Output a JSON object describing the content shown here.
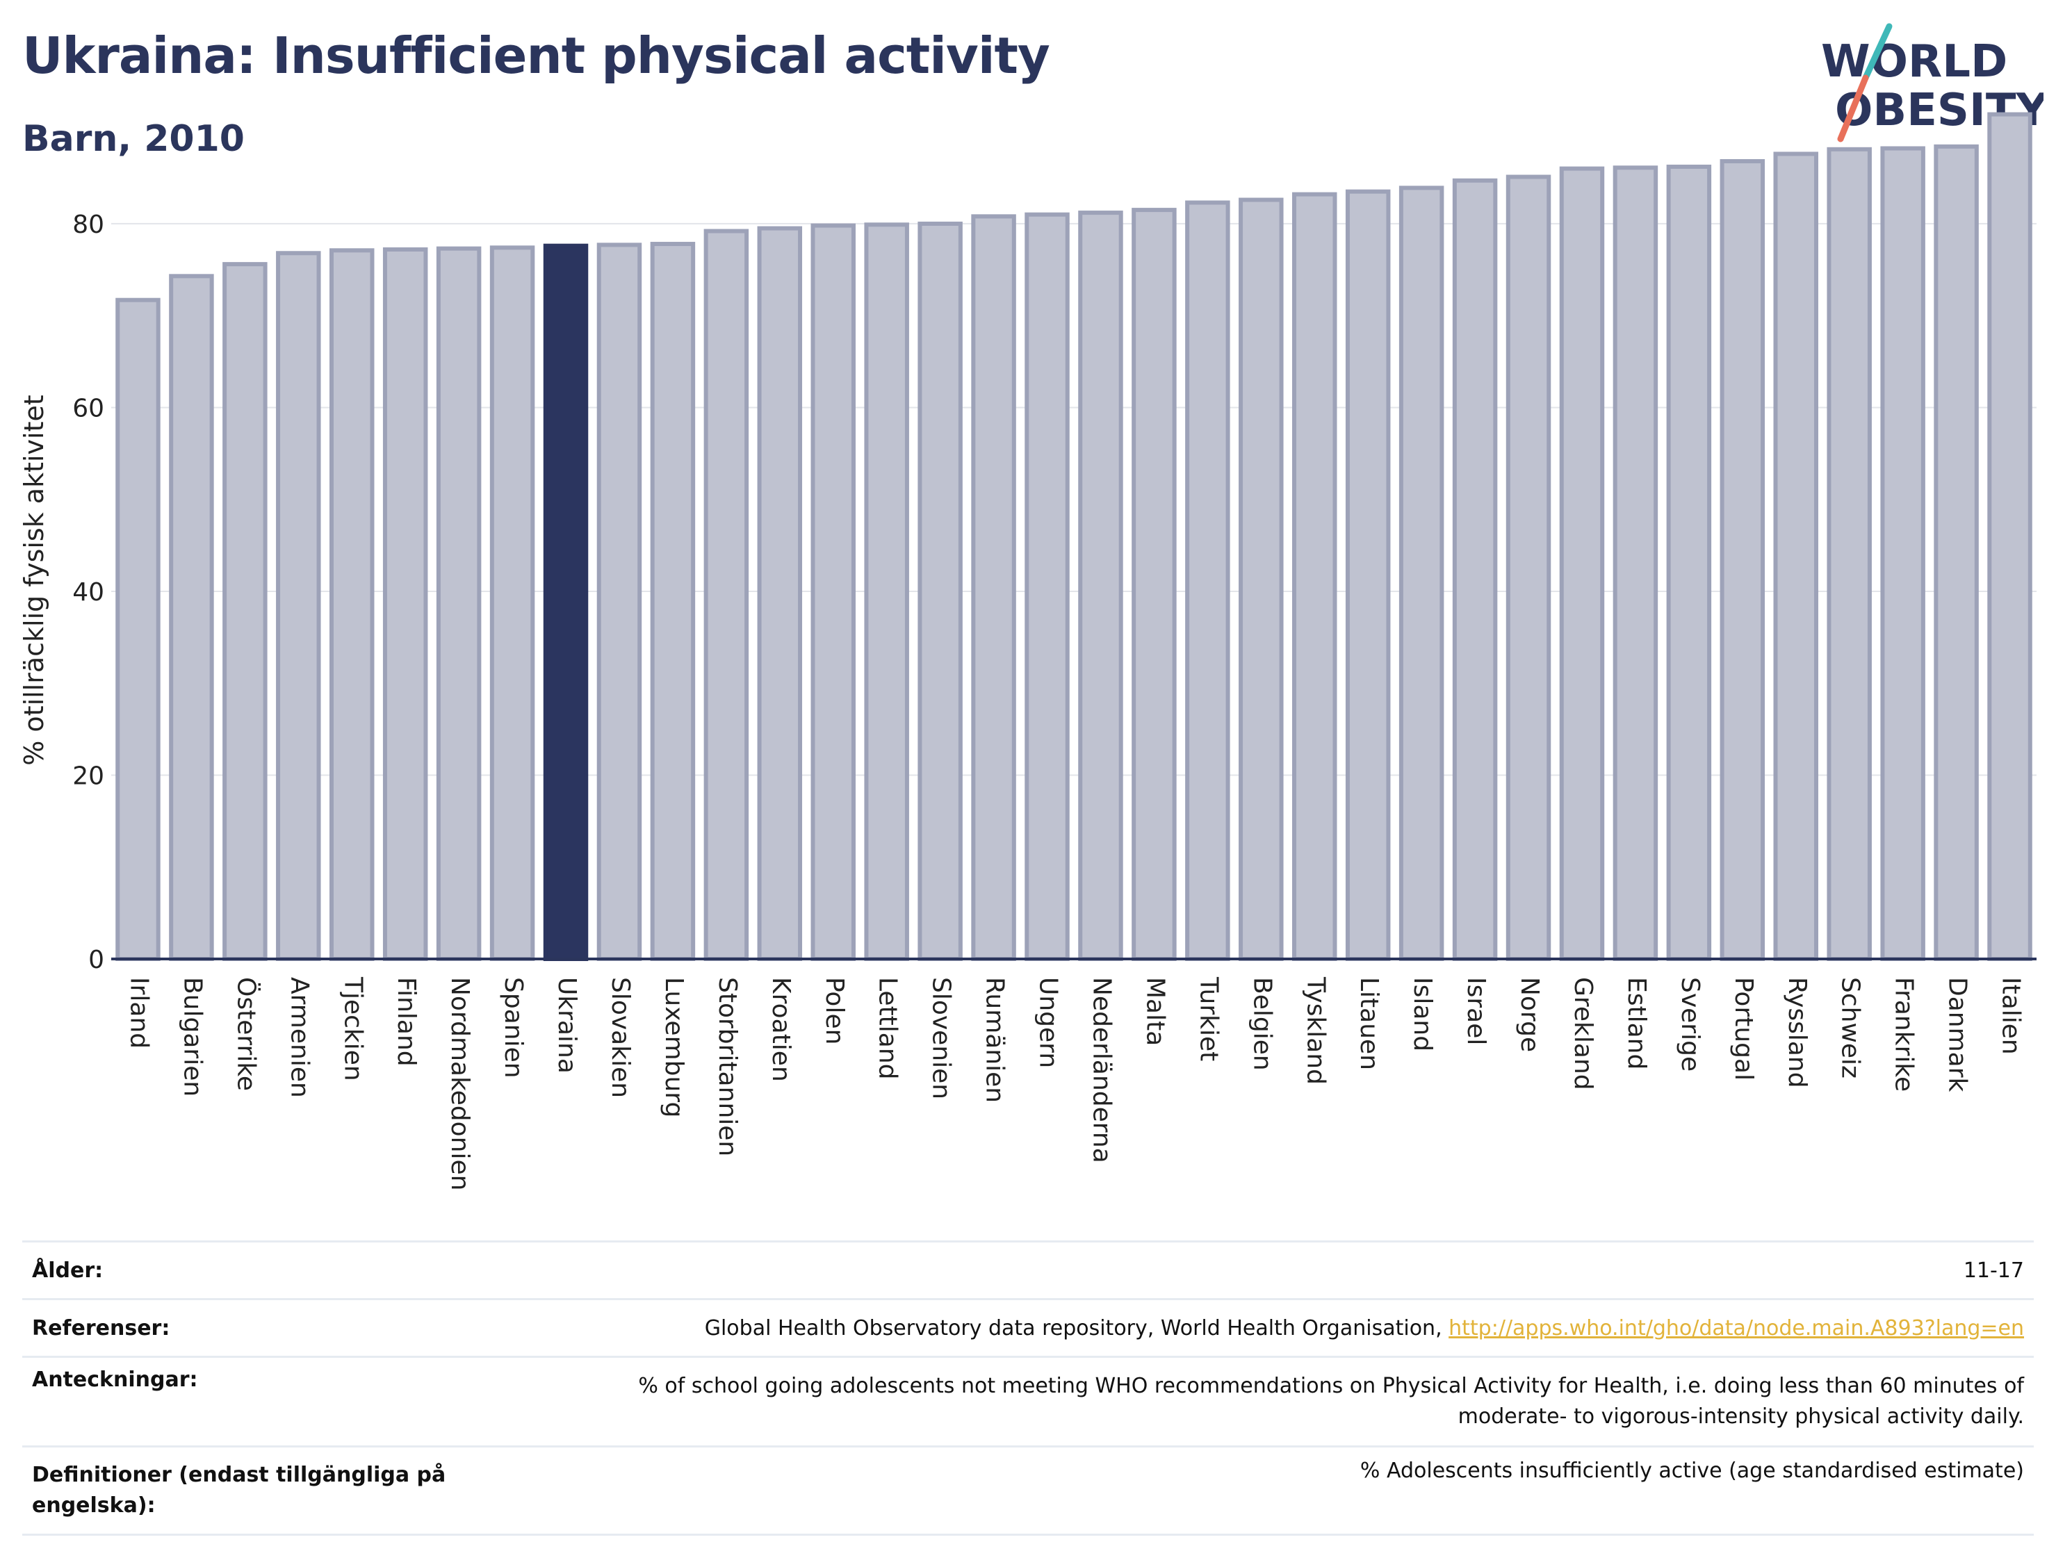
{
  "header": {
    "title": "Ukraina: Insufficient physical activity",
    "subtitle": "Barn, 2010"
  },
  "logo": {
    "line1": "WORLD",
    "line2": "OBESITY"
  },
  "chart_data": {
    "type": "bar",
    "ylabel": "% otillräcklig fysisk aktivitet",
    "ylim": [
      0,
      93
    ],
    "yticks": [
      0,
      20,
      40,
      60,
      80
    ],
    "grid": true,
    "highlight": "Ukraina",
    "colors": {
      "default_fill": "#bfc2d0",
      "default_stroke": "#9da2b8",
      "highlight_fill": "#2b355f"
    },
    "categories": [
      "Irland",
      "Bulgarien",
      "Österrike",
      "Armenien",
      "Tjeckien",
      "Finland",
      "Nordmakedonien",
      "Spanien",
      "Ukraina",
      "Slovakien",
      "Luxemburg",
      "Storbritannien",
      "Kroatien",
      "Polen",
      "Lettland",
      "Slovenien",
      "Rumänien",
      "Ungern",
      "Nederländerna",
      "Malta",
      "Turkiet",
      "Belgien",
      "Tyskland",
      "Litauen",
      "Island",
      "Israel",
      "Norge",
      "Grekland",
      "Estland",
      "Sverige",
      "Portugal",
      "Ryssland",
      "Schweiz",
      "Frankrike",
      "Danmark",
      "Italien"
    ],
    "values": [
      71.7,
      74.3,
      75.6,
      76.8,
      77.1,
      77.2,
      77.3,
      77.4,
      77.6,
      77.7,
      77.8,
      79.2,
      79.5,
      79.8,
      79.9,
      80.0,
      80.8,
      81.0,
      81.2,
      81.5,
      82.3,
      82.6,
      83.2,
      83.5,
      83.9,
      84.7,
      85.1,
      86.0,
      86.1,
      86.2,
      86.8,
      87.6,
      88.1,
      88.2,
      88.4,
      91.9
    ]
  },
  "meta": {
    "age_label": "Ålder:",
    "age_value": "11-17",
    "refs_label": "Referenser:",
    "refs_text": "Global Health Observatory data repository, World Health Organisation, ",
    "refs_link": "http://apps.who.int/gho/data/node.main.A893?lang=en",
    "notes_label": "Anteckningar:",
    "notes_value": "% of school going adolescents not meeting WHO recommendations on Physical Activity for Health, i.e. doing less than 60 minutes of moderate- to vigorous-intensity physical activity daily.",
    "defs_label": "Definitioner (endast tillgängliga på engelska):",
    "defs_value": "% Adolescents insufficiently active (age standardised estimate)"
  }
}
